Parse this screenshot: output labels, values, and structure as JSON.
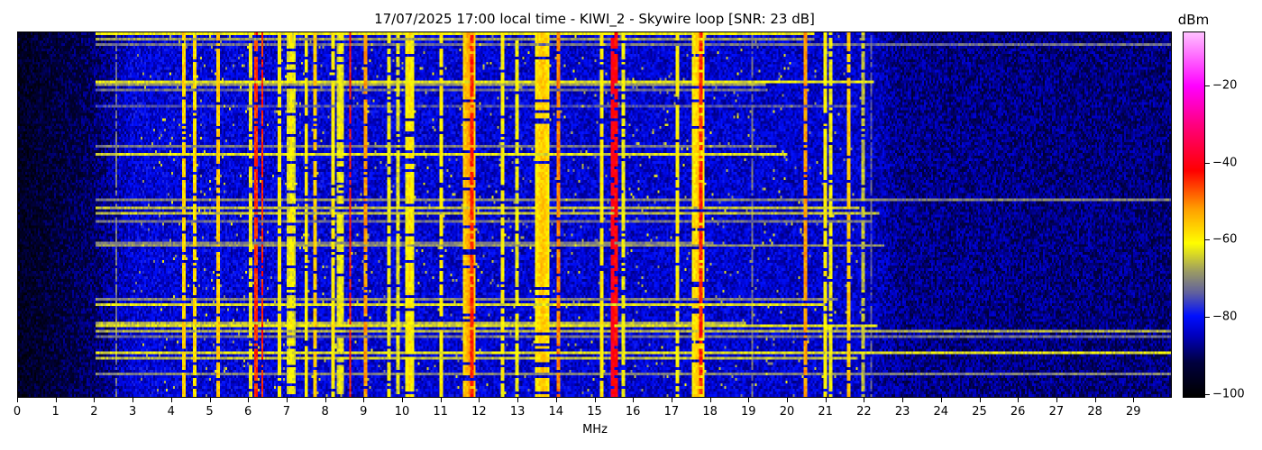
{
  "chart_data": {
    "type": "heatmap",
    "title": "17/07/2025 17:00 local time - KIWI_2 - Skywire loop [SNR: 23 dB]",
    "xlabel": "MHz",
    "ylabel": "",
    "xlim": [
      0,
      30
    ],
    "x_ticks": [
      "0",
      "1",
      "2",
      "3",
      "4",
      "5",
      "6",
      "7",
      "8",
      "9",
      "10",
      "11",
      "12",
      "13",
      "14",
      "15",
      "16",
      "17",
      "18",
      "19",
      "20",
      "21",
      "22",
      "23",
      "24",
      "25",
      "26",
      "27",
      "28",
      "29"
    ],
    "colorbar": {
      "label": "dBm",
      "range": [
        -101,
        -6
      ],
      "ticks": [
        -20,
        -40,
        -60,
        -80,
        -100
      ],
      "tick_labels": [
        "−20",
        "−40",
        "−60",
        "−80",
        "−100"
      ],
      "colormap": [
        {
          "value": -101,
          "color": "#000000"
        },
        {
          "value": -92,
          "color": "#000040"
        },
        {
          "value": -85,
          "color": "#0000c0"
        },
        {
          "value": -80,
          "color": "#0010ff"
        },
        {
          "value": -74,
          "color": "#6060a0"
        },
        {
          "value": -68,
          "color": "#a0a060"
        },
        {
          "value": -61,
          "color": "#ffff00"
        },
        {
          "value": -52,
          "color": "#ffa000"
        },
        {
          "value": -42,
          "color": "#ff0000"
        },
        {
          "value": -30,
          "color": "#ff0080"
        },
        {
          "value": -20,
          "color": "#ff00ff"
        },
        {
          "value": -6,
          "color": "#ffc0ff"
        }
      ]
    },
    "noise_floor_dBm": [
      {
        "mhz": 0,
        "level": -96
      },
      {
        "mhz": 2,
        "level": -90
      },
      {
        "mhz": 3,
        "level": -83
      },
      {
        "mhz": 22,
        "level": -84
      },
      {
        "mhz": 23,
        "level": -88
      },
      {
        "mhz": 30,
        "level": -89
      }
    ],
    "signals": [
      {
        "mhz": 2.55,
        "level": -72,
        "width": 0.03
      },
      {
        "mhz": 4.3,
        "level": -57,
        "width": 0.03
      },
      {
        "mhz": 4.6,
        "level": -58,
        "width": 0.03
      },
      {
        "mhz": 5.2,
        "level": -56,
        "width": 0.03
      },
      {
        "mhz": 6.05,
        "level": -62,
        "width": 0.03
      },
      {
        "mhz": 6.2,
        "level": -45,
        "width": 0.03
      },
      {
        "mhz": 6.35,
        "level": -44,
        "width": 0.04
      },
      {
        "mhz": 6.8,
        "level": -60,
        "width": 0.05
      },
      {
        "mhz": 7.1,
        "level": -60,
        "width": 0.2
      },
      {
        "mhz": 7.5,
        "level": -60,
        "width": 0.04
      },
      {
        "mhz": 7.75,
        "level": -56,
        "width": 0.04
      },
      {
        "mhz": 8.2,
        "level": -60,
        "width": 0.05
      },
      {
        "mhz": 8.4,
        "level": -60,
        "width": 0.15
      },
      {
        "mhz": 8.65,
        "level": -44,
        "width": 0.03
      },
      {
        "mhz": 9.05,
        "level": -52,
        "width": 0.04
      },
      {
        "mhz": 9.65,
        "level": -62,
        "width": 0.05
      },
      {
        "mhz": 9.9,
        "level": -63,
        "width": 0.05
      },
      {
        "mhz": 10.2,
        "level": -58,
        "width": 0.2
      },
      {
        "mhz": 11.0,
        "level": -60,
        "width": 0.05
      },
      {
        "mhz": 11.75,
        "level": -52,
        "width": 0.25
      },
      {
        "mhz": 11.82,
        "level": -44,
        "width": 0.03
      },
      {
        "mhz": 12.6,
        "level": -60,
        "width": 0.05
      },
      {
        "mhz": 13.0,
        "level": -62,
        "width": 0.05
      },
      {
        "mhz": 13.65,
        "level": -55,
        "width": 0.3
      },
      {
        "mhz": 14.05,
        "level": -50,
        "width": 0.05
      },
      {
        "mhz": 15.2,
        "level": -60,
        "width": 0.04
      },
      {
        "mhz": 15.45,
        "level": -40,
        "width": 0.04
      },
      {
        "mhz": 15.55,
        "level": -42,
        "width": 0.03
      },
      {
        "mhz": 15.75,
        "level": -62,
        "width": 0.03
      },
      {
        "mhz": 17.15,
        "level": -60,
        "width": 0.03
      },
      {
        "mhz": 17.7,
        "level": -56,
        "width": 0.3
      },
      {
        "mhz": 17.75,
        "level": -44,
        "width": 0.04
      },
      {
        "mhz": 19.1,
        "level": -72,
        "width": 0.02
      },
      {
        "mhz": 20.5,
        "level": -52,
        "width": 0.03
      },
      {
        "mhz": 21.0,
        "level": -60,
        "width": 0.03
      },
      {
        "mhz": 21.15,
        "level": -62,
        "width": 0.03
      },
      {
        "mhz": 21.6,
        "level": -56,
        "width": 0.03
      },
      {
        "mhz": 22.0,
        "level": -66,
        "width": 0.03
      },
      {
        "mhz": 22.2,
        "level": -74,
        "width": 0.02
      }
    ]
  }
}
